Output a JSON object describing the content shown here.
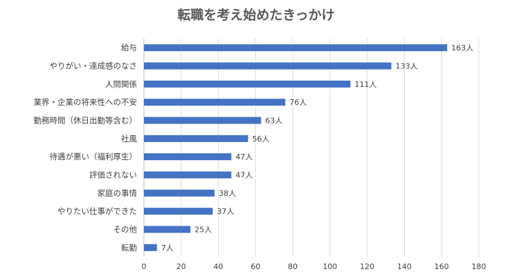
{
  "chart_data": {
    "type": "bar",
    "orientation": "horizontal",
    "title": "転職を考え始めたきっかけ",
    "xlabel": "",
    "ylabel": "",
    "categories": [
      "給与",
      "やりがい・達成感のなさ",
      "人間関係",
      "業界・企業の将来性への不安",
      "勤務時間（休日出勤等含む）",
      "社風",
      "待遇が悪い（福利厚生）",
      "評価されない",
      "家庭の事情",
      "やりたい仕事ができた",
      "その他",
      "転勤"
    ],
    "values": [
      163,
      133,
      111,
      76,
      63,
      56,
      47,
      47,
      38,
      37,
      25,
      7
    ],
    "data_label_suffix": "人",
    "xlim": [
      0,
      180
    ],
    "x_ticks": [
      0,
      20,
      40,
      60,
      80,
      100,
      120,
      140,
      160,
      180
    ],
    "grid": "vertical",
    "legend": "none",
    "bar_color": "#4472c4"
  }
}
